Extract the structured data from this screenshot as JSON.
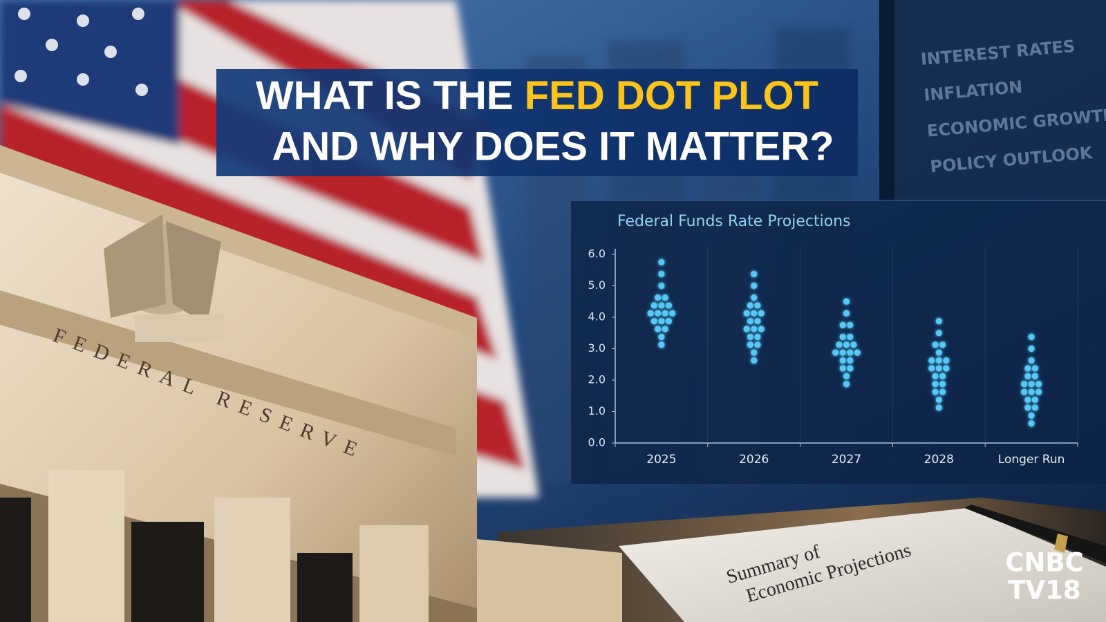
{
  "headline": {
    "line1_start": "WHAT IS THE ",
    "line1_highlight": "FED DOT PLOT",
    "line2": "AND WHY DOES IT MATTER?"
  },
  "side_panel": [
    "INTEREST RATES",
    "INFLATION",
    "ECONOMIC GROWTH",
    "POLICY OUTLOOK"
  ],
  "building_inscription": "FEDERAL RESERVE",
  "document": {
    "line1": "Summary of",
    "line2": "Economic Projections"
  },
  "logo": {
    "line1": "CNBC",
    "line2": "TV18"
  },
  "chart_data": {
    "type": "dot",
    "title": "Federal Funds Rate Projections",
    "categories": [
      "2025",
      "2026",
      "2027",
      "2028",
      "Longer Run"
    ],
    "color": "#56c8f5",
    "values": [
      [
        5.75,
        5.375,
        5.0,
        4.625,
        4.625,
        4.375,
        4.375,
        4.375,
        4.125,
        4.125,
        4.125,
        4.125,
        3.875,
        3.875,
        3.875,
        3.625,
        3.625,
        3.375,
        3.125
      ],
      [
        5.375,
        5.0,
        4.625,
        4.375,
        4.375,
        4.125,
        4.125,
        4.125,
        3.875,
        3.875,
        3.625,
        3.625,
        3.625,
        3.375,
        3.375,
        3.125,
        3.125,
        2.875,
        2.625
      ],
      [
        4.5,
        4.125,
        3.75,
        3.75,
        3.375,
        3.375,
        3.125,
        3.125,
        3.125,
        2.875,
        2.875,
        2.875,
        2.875,
        2.625,
        2.625,
        2.375,
        2.375,
        2.125,
        1.875
      ],
      [
        3.875,
        3.5,
        3.125,
        3.125,
        2.875,
        2.625,
        2.625,
        2.625,
        2.375,
        2.375,
        2.375,
        2.125,
        2.125,
        1.875,
        1.875,
        1.625,
        1.625,
        1.375,
        1.125
      ],
      [
        3.375,
        3.0,
        2.625,
        2.375,
        2.375,
        2.125,
        2.125,
        1.875,
        1.875,
        1.875,
        1.625,
        1.625,
        1.625,
        1.375,
        1.375,
        1.125,
        1.125,
        0.875,
        0.625
      ]
    ],
    "ylim": [
      0,
      6
    ],
    "yticks": [
      {
        "value": 0,
        "label": "0.0"
      },
      {
        "value": 1,
        "label": "1.0"
      },
      {
        "value": 2,
        "label": "2.0"
      },
      {
        "value": 3,
        "label": "3.0"
      },
      {
        "value": 4,
        "label": "4.0"
      },
      {
        "value": 5,
        "label": "5.0"
      },
      {
        "value": 6,
        "label": "6.0"
      }
    ]
  }
}
